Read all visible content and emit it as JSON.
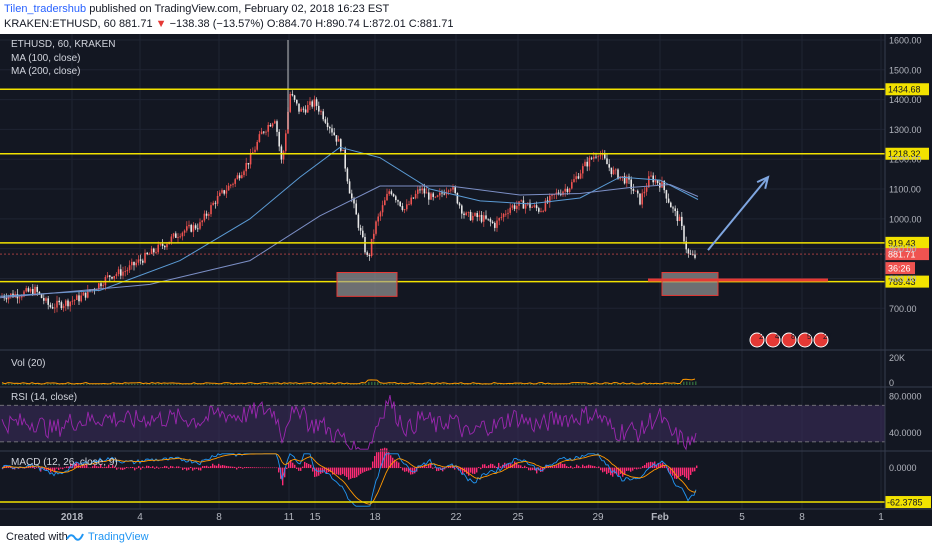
{
  "header": {
    "author": "Tilen_tradershub",
    "published_text": "published on TradingView.com, February 02, 2018 16:23 EST",
    "symbol": "KRAKEN:ETHUSD, 60",
    "last": "881.71",
    "change": "−138.38 (−13.57%)",
    "open": "O:884.70",
    "high": "H:890.74",
    "low": "L:872.01",
    "close": "C:881.71"
  },
  "footer": {
    "created_with": "Created with",
    "brand": "TradingView"
  },
  "colors": {
    "background": "#131722",
    "grid": "#1f2433",
    "up_candle": "#ef5350",
    "down_candle": "#e6e6e6",
    "ma100": "#5b9bd5",
    "ma200": "#7c8fc6",
    "level_line": "#f2e200",
    "support_zone": "#9e9e9e",
    "red_line": "#e53935",
    "arrow": "#7fa6e0",
    "volume": "#ff9800",
    "rsi_line": "#9c27b0",
    "rsi_band": "#3a2b5a",
    "macd_line": "#2196f3",
    "signal_line": "#ff9800",
    "histogram": "#ff2b75"
  },
  "chart_data": [
    {
      "type": "candlestick",
      "pane": "price",
      "legend": [
        "ETHUSD, 60, KRAKEN",
        "MA (100, close)",
        "MA (200, close)"
      ],
      "ylim": [
        560,
        1620
      ],
      "y_ticks": [
        700,
        800,
        900,
        1000,
        1100,
        1200,
        1300,
        1400,
        1500,
        1600
      ],
      "y_tick_labels": [
        "700.00",
        "800.00",
        "900.00",
        "1000.00",
        "1100.00",
        "1200.00",
        "1300.00",
        "1400.00",
        "1500.00",
        "1600.00"
      ],
      "x_tick_labels": [
        "2018",
        "4",
        "8",
        "11",
        "15",
        "18",
        "22",
        "25",
        "29",
        "Feb",
        "5",
        "8",
        "1"
      ],
      "price_path": [
        [
          0,
          740
        ],
        [
          20,
          748
        ],
        [
          35,
          760
        ],
        [
          50,
          705
        ],
        [
          65,
          718
        ],
        [
          80,
          735
        ],
        [
          95,
          770
        ],
        [
          110,
          810
        ],
        [
          125,
          825
        ],
        [
          140,
          860
        ],
        [
          160,
          905
        ],
        [
          180,
          955
        ],
        [
          200,
          980
        ],
        [
          215,
          1060
        ],
        [
          235,
          1130
        ],
        [
          250,
          1200
        ],
        [
          262,
          1290
        ],
        [
          275,
          1340
        ],
        [
          282,
          1180
        ],
        [
          290,
          1420
        ],
        [
          300,
          1360
        ],
        [
          315,
          1390
        ],
        [
          330,
          1310
        ],
        [
          342,
          1235
        ],
        [
          350,
          1090
        ],
        [
          360,
          960
        ],
        [
          368,
          860
        ],
        [
          375,
          975
        ],
        [
          390,
          1100
        ],
        [
          405,
          1030
        ],
        [
          420,
          1100
        ],
        [
          435,
          1060
        ],
        [
          450,
          1115
        ],
        [
          465,
          1010
        ],
        [
          480,
          1005
        ],
        [
          495,
          980
        ],
        [
          510,
          1040
        ],
        [
          525,
          1050
        ],
        [
          540,
          1030
        ],
        [
          555,
          1080
        ],
        [
          570,
          1110
        ],
        [
          585,
          1180
        ],
        [
          598,
          1225
        ],
        [
          612,
          1160
        ],
        [
          628,
          1125
        ],
        [
          640,
          1060
        ],
        [
          650,
          1140
        ],
        [
          662,
          1115
        ],
        [
          672,
          1035
        ],
        [
          680,
          990
        ],
        [
          688,
          880
        ],
        [
          694,
          870
        ],
        [
          698,
          880
        ]
      ],
      "levels": [
        {
          "value": 1434.68,
          "label": "1434.68"
        },
        {
          "value": 1218.32,
          "label": "1218.32"
        },
        {
          "value": 919.43,
          "label": "919.43"
        },
        {
          "value": 789.43,
          "label": "789.43"
        }
      ],
      "last_price": {
        "value": 881.71,
        "label": "881.71"
      },
      "countdown": {
        "label": "36:26"
      },
      "ma100_path": [
        [
          0,
          740
        ],
        [
          100,
          760
        ],
        [
          180,
          860
        ],
        [
          250,
          1000
        ],
        [
          300,
          1140
        ],
        [
          340,
          1240
        ],
        [
          380,
          1205
        ],
        [
          430,
          1100
        ],
        [
          480,
          1060
        ],
        [
          530,
          1050
        ],
        [
          580,
          1070
        ],
        [
          620,
          1140
        ],
        [
          660,
          1130
        ],
        [
          698,
          1065
        ]
      ],
      "ma200_path": [
        [
          0,
          735
        ],
        [
          150,
          780
        ],
        [
          250,
          860
        ],
        [
          320,
          1010
        ],
        [
          380,
          1110
        ],
        [
          450,
          1110
        ],
        [
          520,
          1080
        ],
        [
          580,
          1085
        ],
        [
          630,
          1105
        ],
        [
          670,
          1115
        ],
        [
          698,
          1075
        ]
      ],
      "support_zones": [
        {
          "x0": 337,
          "x1": 397,
          "y0": 740,
          "y1": 820
        },
        {
          "x0": 662,
          "x1": 718,
          "y0": 743,
          "y1": 820
        }
      ],
      "red_line": {
        "x0": 648,
        "x1": 828,
        "value": 795
      },
      "arrow": {
        "from": [
          708,
          895
        ],
        "to": [
          768,
          1140
        ]
      },
      "event_markers": [
        "2",
        "4",
        "8",
        "5",
        "27"
      ]
    },
    {
      "type": "bar",
      "pane": "volume",
      "legend": "Vol (20)",
      "y_tick_labels": [
        "20K",
        "0"
      ],
      "ylim": [
        0,
        25000
      ]
    },
    {
      "type": "line",
      "pane": "rsi",
      "legend": "RSI (14, close)",
      "ylim": [
        20,
        90
      ],
      "y_tick_labels": [
        "80.0000",
        "40.0000"
      ],
      "band": [
        30,
        70
      ]
    },
    {
      "type": "line",
      "pane": "macd",
      "legend": "MACD (12, 26, close, 9)",
      "y_tick_labels": [
        "0.0000",
        "-62.3785"
      ],
      "ylim": [
        -75,
        30
      ],
      "level": -62.3785
    }
  ]
}
